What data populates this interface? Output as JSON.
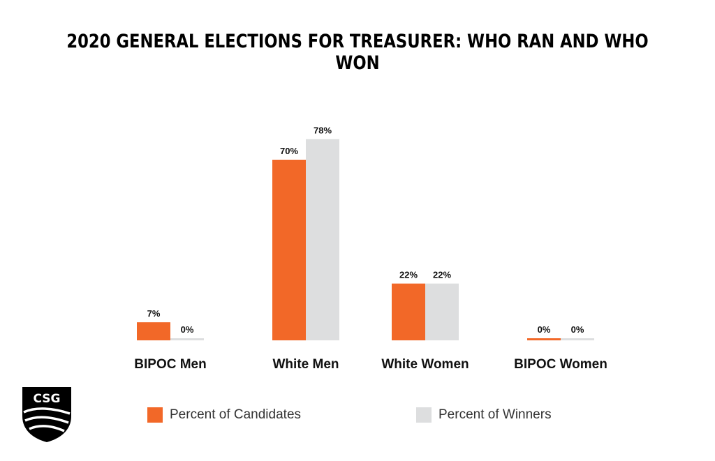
{
  "title": "2020 GENERAL ELECTIONS FOR TREASURER: WHO RAN AND WHO WON",
  "logo": {
    "text": "CSG"
  },
  "colors": {
    "candidates": "#F26828",
    "winners": "#DDDEDF"
  },
  "chart_data": {
    "type": "bar",
    "title": "2020 GENERAL ELECTIONS FOR TREASURER: WHO RAN AND WHO WON",
    "categories": [
      "BIPOC Men",
      "White Men",
      "White Women",
      "BIPOC Women"
    ],
    "series": [
      {
        "name": "Percent of Candidates",
        "values": [
          7,
          70,
          22,
          0
        ],
        "labels": [
          "7%",
          "70%",
          "22%",
          "0%"
        ]
      },
      {
        "name": "Percent of Winners",
        "values": [
          0,
          78,
          22,
          0
        ],
        "labels": [
          "0%",
          "78%",
          "22%",
          "0%"
        ]
      }
    ],
    "ylim": [
      0,
      100
    ],
    "grid": false,
    "legend_position": "bottom"
  }
}
